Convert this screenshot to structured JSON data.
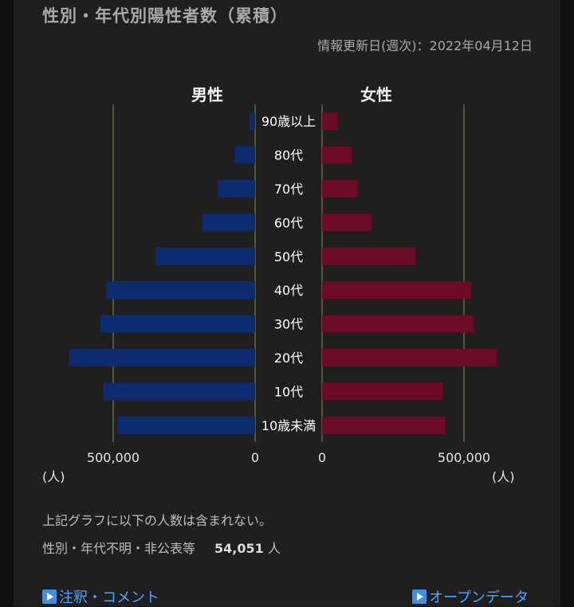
{
  "title": "性別・年代別陽性者数（累積）",
  "updated": "情報更新日(週次)：2022年04月12日",
  "chart_data": {
    "type": "bar",
    "orientation": "horizontal-pyramid",
    "categories": [
      "90歳以上",
      "80代",
      "70代",
      "60代",
      "50代",
      "40代",
      "30代",
      "20代",
      "10代",
      "10歳未満"
    ],
    "series": [
      {
        "name": "男性",
        "color": "#0d2c70",
        "values": [
          20000,
          72000,
          130000,
          185000,
          350000,
          525000,
          545000,
          655000,
          535000,
          485000
        ]
      },
      {
        "name": "女性",
        "color": "#6b0b28",
        "values": [
          55000,
          105000,
          125000,
          175000,
          330000,
          525000,
          535000,
          615000,
          425000,
          435000
        ]
      }
    ],
    "xlim": [
      0,
      500000
    ],
    "tick_labels": {
      "male": [
        "500,000",
        "0"
      ],
      "female": [
        "0",
        "500,000"
      ]
    },
    "unit_label": "(人)"
  },
  "note": {
    "line1": "上記グラフに以下の人数は含まれない。",
    "line2_label": "性別・年代不明・非公表等",
    "line2_value": "54,051",
    "line2_unit": "人"
  },
  "links": {
    "notes": "注釈・コメント",
    "opendata": "オープンデータ"
  }
}
